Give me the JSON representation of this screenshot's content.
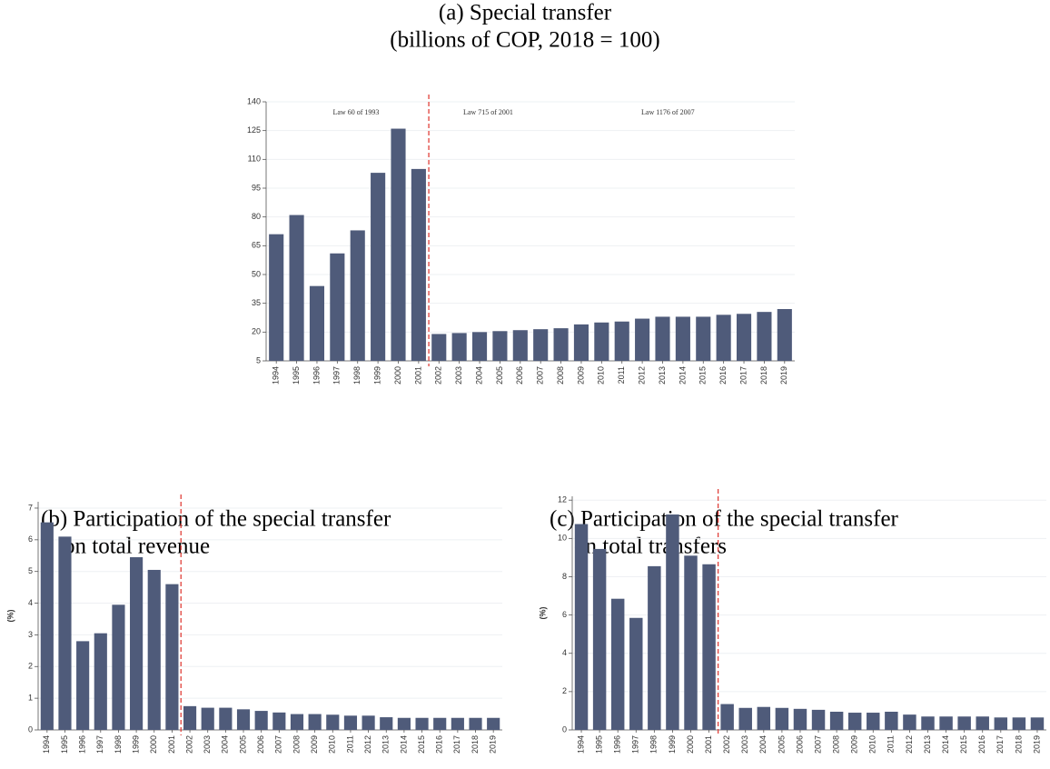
{
  "chart_data": [
    {
      "type": "bar",
      "title": "(a) Special transfer",
      "subtitle": "(billions of COP, 2018 = 100)",
      "categories": [
        "1994",
        "1995",
        "1996",
        "1997",
        "1998",
        "1999",
        "2000",
        "2001",
        "2002",
        "2003",
        "2004",
        "2005",
        "2006",
        "2007",
        "2008",
        "2009",
        "2010",
        "2011",
        "2012",
        "2013",
        "2014",
        "2015",
        "2016",
        "2017",
        "2018",
        "2019"
      ],
      "values": [
        71,
        81,
        44,
        61,
        73,
        103,
        126,
        105,
        19,
        19.5,
        20,
        20.5,
        21,
        21.5,
        22,
        24,
        25,
        25.5,
        27,
        28,
        28,
        28,
        29,
        29.5,
        30.5,
        32
      ],
      "color": "#4f5b7a",
      "ylim": [
        5,
        140
      ],
      "yticks": [
        5,
        20,
        35,
        50,
        65,
        80,
        95,
        110,
        125,
        140
      ],
      "grid": true,
      "reference_line": {
        "after": "2001",
        "color": "#e0413b",
        "style": "dashed"
      },
      "annotations": [
        "Law 60 of 1993",
        "Law 715 of 2001",
        "Law 1176 of 2007"
      ]
    },
    {
      "type": "bar",
      "title": "(b) Participation of the special transfer",
      "subtitle": "on total revenue",
      "ylabel": "(%)",
      "categories": [
        "1994",
        "1995",
        "1996",
        "1997",
        "1998",
        "1999",
        "2000",
        "2001",
        "2002",
        "2003",
        "2004",
        "2005",
        "2006",
        "2007",
        "2008",
        "2009",
        "2010",
        "2011",
        "2012",
        "2013",
        "2014",
        "2015",
        "2016",
        "2017",
        "2018",
        "2019"
      ],
      "values": [
        6.55,
        6.1,
        2.8,
        3.05,
        3.95,
        5.45,
        5.05,
        4.6,
        0.75,
        0.7,
        0.7,
        0.65,
        0.6,
        0.55,
        0.5,
        0.5,
        0.48,
        0.45,
        0.45,
        0.4,
        0.38,
        0.38,
        0.38,
        0.38,
        0.38,
        0.38
      ],
      "color": "#4f5b7a",
      "ylim": [
        0,
        7.2
      ],
      "yticks": [
        0,
        1,
        2,
        3,
        4,
        5,
        6,
        7
      ],
      "grid": true,
      "reference_line": {
        "after": "2001",
        "color": "#e0413b",
        "style": "dashed"
      }
    },
    {
      "type": "bar",
      "title": "(c) Participation of the special transfer",
      "subtitle": "on total transfers",
      "ylabel": "(%)",
      "categories": [
        "1994",
        "1995",
        "1996",
        "1997",
        "1998",
        "1999",
        "2000",
        "2001",
        "2002",
        "2003",
        "2004",
        "2005",
        "2006",
        "2007",
        "2008",
        "2009",
        "2010",
        "2011",
        "2012",
        "2013",
        "2014",
        "2015",
        "2016",
        "2017",
        "2018",
        "2019"
      ],
      "values": [
        10.75,
        9.45,
        6.85,
        5.85,
        8.55,
        11.25,
        9.1,
        8.65,
        1.35,
        1.15,
        1.2,
        1.15,
        1.1,
        1.05,
        0.95,
        0.9,
        0.9,
        0.95,
        0.8,
        0.7,
        0.7,
        0.7,
        0.7,
        0.65,
        0.65,
        0.65
      ],
      "color": "#4f5b7a",
      "ylim": [
        0,
        12.2
      ],
      "yticks": [
        0,
        2,
        4,
        6,
        8,
        10,
        12
      ],
      "grid": true,
      "reference_line": {
        "after": "2001",
        "color": "#e0413b",
        "style": "dashed"
      }
    }
  ]
}
